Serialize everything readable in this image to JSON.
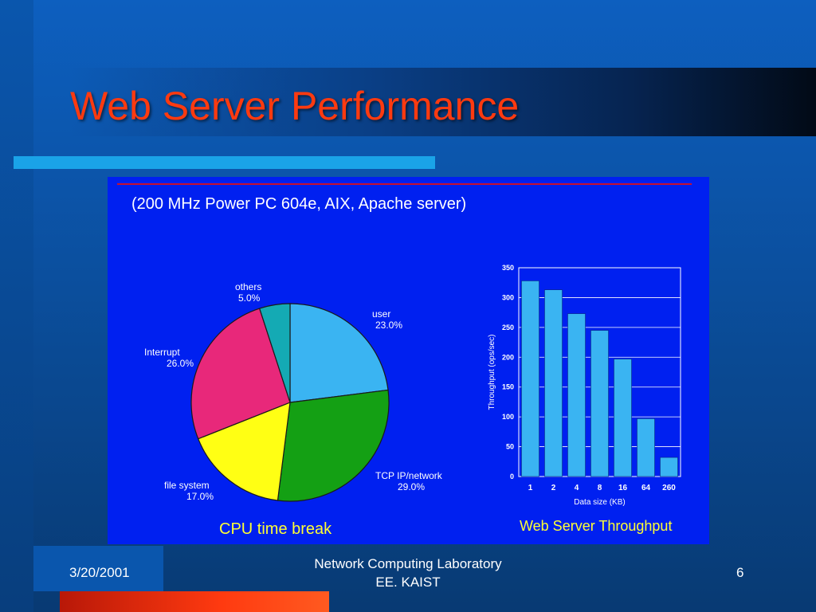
{
  "slide": {
    "title": "Web Server Performance",
    "subtitle": "(200 MHz Power PC 604e, AIX, Apache server)",
    "footer": {
      "date": "3/20/2001",
      "lab_line1": "Network Computing Laboratory",
      "lab_line2": "EE. KAIST",
      "page": "6"
    }
  },
  "colors": {
    "title": "#ff3a10",
    "panel": "#0020f0",
    "caption": "#ffff33",
    "bars": "#3ab4f2"
  },
  "chart_data": [
    {
      "type": "pie",
      "title": "CPU time break",
      "slices": [
        {
          "label": "user",
          "value": 23.0,
          "pct": "23.0%",
          "color": "#3ab4f2"
        },
        {
          "label": "TCP IP/network",
          "value": 29.0,
          "pct": "29.0%",
          "color": "#14a014"
        },
        {
          "label": "file system",
          "value": 17.0,
          "pct": "17.0%",
          "color": "#ffff14"
        },
        {
          "label": "Interrupt",
          "value": 26.0,
          "pct": "26.0%",
          "color": "#e8287a"
        },
        {
          "label": "others",
          "value": 5.0,
          "pct": "5.0%",
          "color": "#14aab4"
        }
      ]
    },
    {
      "type": "bar",
      "title": "Web Server Throughput",
      "xlabel": "Data size (KB)",
      "ylabel": "Throughput (ops/sec)",
      "categories": [
        "1",
        "2",
        "4",
        "8",
        "16",
        "64",
        "260"
      ],
      "values": [
        328,
        313,
        273,
        245,
        197,
        97,
        32
      ],
      "ylim": [
        0,
        350
      ],
      "yticks": [
        "0",
        "50",
        "100",
        "150",
        "200",
        "250",
        "300",
        "350"
      ],
      "grid": true
    }
  ]
}
